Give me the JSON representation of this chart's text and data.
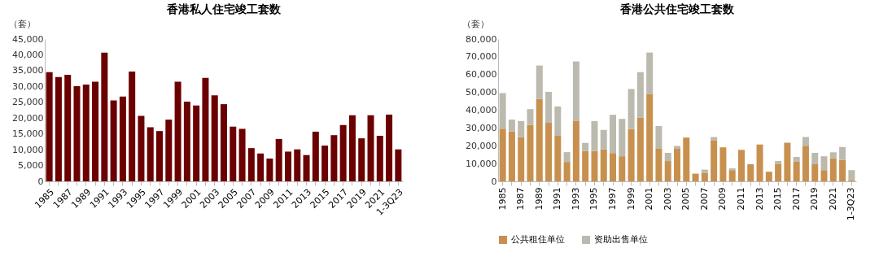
{
  "chart_data": [
    {
      "type": "bar",
      "title": "香港私人住宅竣工套数",
      "ylabel": "（套）",
      "categories": [
        "1985",
        null,
        "1987",
        null,
        "1989",
        null,
        "1991",
        null,
        "1993",
        null,
        "1995",
        null,
        "1997",
        null,
        "1999",
        null,
        "2001",
        null,
        "2003",
        null,
        "2005",
        null,
        "2007",
        null,
        "2009",
        null,
        "2011",
        null,
        "2013",
        null,
        "2015",
        null,
        "2017",
        null,
        "2019",
        null,
        "2021",
        null,
        "1-3Q23"
      ],
      "series": [
        {
          "color": "#6b0000",
          "values": [
            34500,
            33000,
            33700,
            30100,
            30600,
            31500,
            40700,
            25600,
            26800,
            34700,
            20700,
            17100,
            15900,
            19500,
            31500,
            25200,
            24000,
            32700,
            27200,
            24400,
            17300,
            16600,
            10500,
            8800,
            7200,
            13400,
            9400,
            10100,
            8300,
            15700,
            11300,
            14600,
            17800,
            20900,
            13600,
            20900,
            14400,
            21100,
            10100
          ]
        }
      ],
      "ylim": [
        0,
        45000
      ],
      "yticks": [
        0,
        {
          "value": 5000,
          "label": "5,000"
        },
        {
          "value": 10000,
          "label": "10,000"
        },
        {
          "value": 15000,
          "label": "15,000"
        },
        {
          "value": 20000,
          "label": "20,000"
        },
        {
          "value": 25000,
          "label": "25,000"
        },
        {
          "value": 30000,
          "label": "30,000"
        },
        {
          "value": 35000,
          "label": "35,000"
        },
        {
          "value": 40000,
          "label": "40,000"
        },
        {
          "value": 45000,
          "label": "45,000"
        }
      ],
      "grid": false
    },
    {
      "type": "bar",
      "title": "香港公共住宅竣工套数",
      "ylabel": "（套）",
      "stacked": true,
      "categories": [
        "1985",
        null,
        "1987",
        null,
        "1989",
        null,
        "1991",
        null,
        "1993",
        null,
        "1995",
        null,
        "1997",
        null,
        "1999",
        null,
        "2001",
        null,
        "2003",
        null,
        "2005",
        null,
        "2007",
        null,
        "2009",
        null,
        "2011",
        null,
        "2013",
        null,
        "2015",
        null,
        "2017",
        null,
        "2019",
        null,
        "2021",
        null,
        "1-3Q23"
      ],
      "series": [
        {
          "name": "公共租住单位",
          "color": "#c8904e",
          "values": [
            29600,
            28000,
            24900,
            31700,
            46300,
            32900,
            25600,
            10900,
            34100,
            17100,
            17100,
            18000,
            15900,
            14100,
            29400,
            35700,
            49100,
            18300,
            11400,
            18300,
            24600,
            4300,
            4600,
            22900,
            19100,
            6300,
            17700,
            9600,
            20700,
            5400,
            9900,
            21700,
            11000,
            20000,
            9600,
            6300,
            13000,
            12000,
            700
          ]
        },
        {
          "name": "资助出售单位",
          "color": "#bcbaae",
          "values": [
            20000,
            6700,
            9000,
            8900,
            18800,
            17400,
            16500,
            5500,
            33300,
            4500,
            16800,
            10900,
            21500,
            21000,
            22500,
            25700,
            23300,
            12800,
            4600,
            1600,
            null,
            null,
            2000,
            2000,
            null,
            1000,
            null,
            null,
            null,
            null,
            1500,
            null,
            2700,
            4900,
            6400,
            7800,
            3300,
            7300,
            5600
          ]
        }
      ],
      "ylim": [
        0,
        80000
      ],
      "yticks": [
        0,
        {
          "value": 10000,
          "label": "10,000"
        },
        {
          "value": 20000,
          "label": "20,000"
        },
        {
          "value": 30000,
          "label": "30,000"
        },
        {
          "value": 40000,
          "label": "40,000"
        },
        {
          "value": 50000,
          "label": "50,000"
        },
        {
          "value": 60000,
          "label": "60,000"
        },
        {
          "value": 70000,
          "label": "70,000"
        },
        {
          "value": 80000,
          "label": "80,000"
        }
      ],
      "grid": false,
      "legend": "bottom"
    }
  ]
}
